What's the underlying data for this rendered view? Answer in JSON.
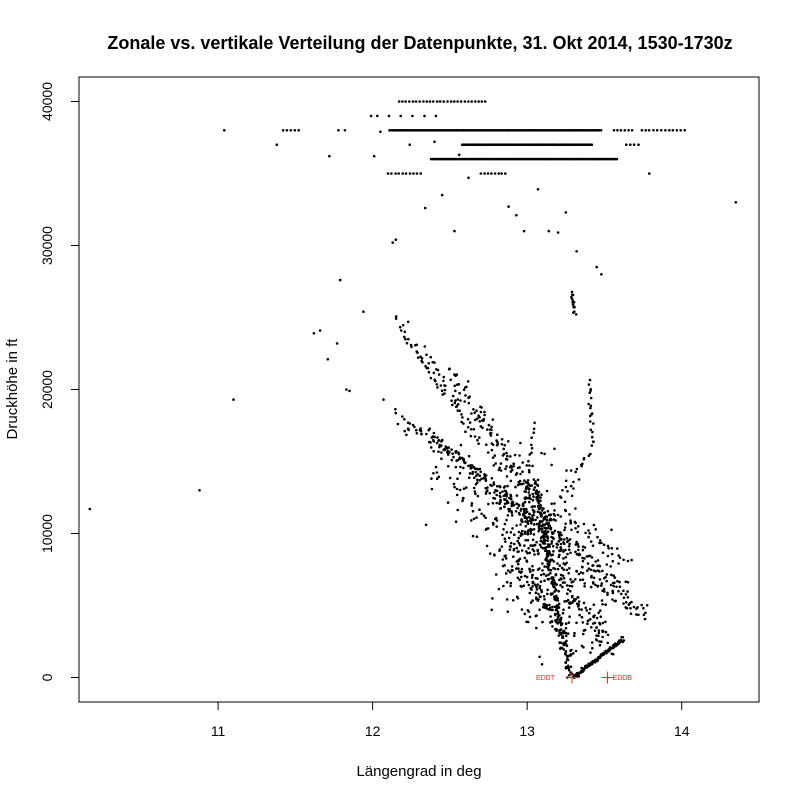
{
  "chart_data": {
    "type": "scatter",
    "title": "Zonale vs. vertikale Verteilung der Datenpunkte, 31. Okt 2014, 1530-1730z",
    "xlabel": "Längengrad in deg",
    "ylabel": "Druckhöhe in ft",
    "xlim": [
      10.1,
      14.5
    ],
    "ylim": [
      -1700,
      41700
    ],
    "x_ticks": [
      11,
      12,
      13,
      14
    ],
    "y_ticks": [
      0,
      10000,
      20000,
      30000,
      40000
    ],
    "grid": false,
    "legend": "none",
    "marker_color": "#000000",
    "annotation_color": "#ff2020",
    "airports": [
      {
        "label": "EDDT",
        "x": 13.29,
        "y": 0
      },
      {
        "label": "EDDB",
        "x": 13.52,
        "y": 0
      }
    ],
    "isolated_points": [
      [
        10.17,
        11700
      ],
      [
        10.88,
        13000
      ],
      [
        11.1,
        19300
      ],
      [
        11.04,
        38000
      ],
      [
        11.38,
        37000
      ],
      [
        11.62,
        23900
      ],
      [
        11.66,
        24100
      ],
      [
        11.71,
        22100
      ],
      [
        11.72,
        36200
      ],
      [
        11.77,
        23200
      ],
      [
        11.79,
        27600
      ],
      [
        11.83,
        20000
      ],
      [
        11.85,
        19900
      ],
      [
        11.94,
        25400
      ],
      [
        11.99,
        39000
      ],
      [
        12.01,
        36200
      ],
      [
        12.07,
        19300
      ],
      [
        12.13,
        30200
      ],
      [
        12.15,
        30400
      ],
      [
        12.23,
        24700
      ],
      [
        12.34,
        32600
      ],
      [
        12.45,
        33500
      ],
      [
        12.53,
        31000
      ],
      [
        12.56,
        36300
      ],
      [
        12.62,
        34700
      ],
      [
        12.88,
        32700
      ],
      [
        12.93,
        32100
      ],
      [
        13.07,
        33900
      ],
      [
        13.25,
        32300
      ],
      [
        13.32,
        29600
      ],
      [
        13.45,
        28500
      ],
      [
        13.48,
        28000
      ],
      [
        13.79,
        35000
      ],
      [
        14.35,
        33000
      ],
      [
        12.98,
        31000
      ],
      [
        13.14,
        31000
      ],
      [
        13.2,
        30900
      ],
      [
        12.05,
        37900
      ],
      [
        12.24,
        37000
      ],
      [
        12.4,
        37200
      ]
    ],
    "levels": [
      {
        "y": 40000,
        "x_range": [
          12.17,
          12.73
        ],
        "count": 26
      },
      {
        "y": 39000,
        "x_range": [
          12.03,
          12.41
        ],
        "count": 6
      },
      {
        "y": 38000,
        "x_range": [
          11.42,
          11.52
        ],
        "count": 5
      },
      {
        "y": 38000,
        "x_range": [
          11.78,
          11.82
        ],
        "count": 2
      },
      {
        "y": 38000,
        "x_range": [
          12.11,
          13.48
        ],
        "count": 150
      },
      {
        "y": 38000,
        "x_range": [
          13.56,
          13.68
        ],
        "count": 6
      },
      {
        "y": 38000,
        "x_range": [
          13.74,
          14.02
        ],
        "count": 12
      },
      {
        "y": 37000,
        "x_range": [
          12.58,
          13.42
        ],
        "count": 90
      },
      {
        "y": 37000,
        "x_range": [
          13.64,
          13.72
        ],
        "count": 4
      },
      {
        "y": 36000,
        "x_range": [
          12.38,
          13.58
        ],
        "count": 120
      },
      {
        "y": 35000,
        "x_range": [
          12.1,
          12.31
        ],
        "count": 10
      },
      {
        "y": 35000,
        "x_range": [
          12.7,
          12.86
        ],
        "count": 8
      }
    ],
    "tracks": [
      {
        "from": [
          13.05,
          13700
        ],
        "to": [
          13.27,
          0
        ],
        "count": 180,
        "jitter": [
          0.012,
          150
        ]
      },
      {
        "from": [
          13.62,
          2700
        ],
        "to": [
          13.3,
          0
        ],
        "count": 130,
        "jitter": [
          0.005,
          60
        ]
      },
      {
        "from": [
          12.42,
          16600
        ],
        "to": [
          13.78,
          4300
        ],
        "count": 120,
        "jitter": [
          0.02,
          250
        ]
      },
      {
        "from": [
          12.15,
          18500
        ],
        "to": [
          13.65,
          6500
        ],
        "count": 100,
        "jitter": [
          0.02,
          250
        ]
      },
      {
        "from": [
          12.25,
          17500
        ],
        "to": [
          13.2,
          9000
        ],
        "count": 90,
        "jitter": [
          0.03,
          300
        ]
      },
      {
        "from": [
          12.51,
          21400
        ],
        "to": [
          13.15,
          10800
        ],
        "count": 80,
        "jitter": [
          0.02,
          250
        ]
      },
      {
        "from": [
          12.15,
          24900
        ],
        "to": [
          12.45,
          19700
        ],
        "count": 30,
        "jitter": [
          0.01,
          150
        ]
      },
      {
        "from": [
          12.3,
          23000
        ],
        "to": [
          12.7,
          16300
        ],
        "count": 40,
        "jitter": [
          0.02,
          200
        ]
      },
      {
        "from": [
          12.55,
          20000
        ],
        "to": [
          13.3,
          7500
        ],
        "count": 70,
        "jitter": [
          0.03,
          400
        ]
      },
      {
        "from": [
          12.4,
          14400
        ],
        "to": [
          13.5,
          3200
        ],
        "count": 70,
        "jitter": [
          0.04,
          350
        ]
      },
      {
        "from": [
          12.82,
          13400
        ],
        "to": [
          13.55,
          1500
        ],
        "count": 60,
        "jitter": [
          0.03,
          250
        ]
      },
      {
        "from": [
          12.85,
          8100
        ],
        "to": [
          13.25,
          3400
        ],
        "count": 40,
        "jitter": [
          0.02,
          300
        ]
      },
      {
        "from": [
          13.05,
          6500
        ],
        "to": [
          13.3,
          1500
        ],
        "count": 35,
        "jitter": [
          0.015,
          200
        ]
      },
      {
        "from": [
          13.29,
          26800
        ],
        "to": [
          13.31,
          25300
        ],
        "count": 14,
        "jitter": [
          0.006,
          100
        ]
      },
      {
        "from": [
          13.4,
          20500
        ],
        "to": [
          13.43,
          16200
        ],
        "count": 20,
        "jitter": [
          0.006,
          120
        ]
      },
      {
        "from": [
          13.4,
          15700
        ],
        "to": [
          13.05,
          8500
        ],
        "count": 40,
        "jitter": [
          0.02,
          200
        ]
      },
      {
        "from": [
          13.25,
          11000
        ],
        "to": [
          13.65,
          8000
        ],
        "count": 30,
        "jitter": [
          0.02,
          200
        ]
      },
      {
        "from": [
          13.15,
          8500
        ],
        "to": [
          13.72,
          4500
        ],
        "count": 40,
        "jitter": [
          0.02,
          250
        ]
      },
      {
        "from": [
          13.05,
          17600
        ],
        "to": [
          12.95,
          9500
        ],
        "count": 25,
        "jitter": [
          0.01,
          300
        ]
      },
      {
        "from": [
          13.49,
          8000
        ],
        "to": [
          13.46,
          2500
        ],
        "count": 20,
        "jitter": [
          0.02,
          200
        ]
      }
    ],
    "clouds": [
      {
        "center": [
          13.0,
          9500
        ],
        "spread": [
          0.14,
          2400
        ],
        "count": 160
      },
      {
        "center": [
          13.15,
          7000
        ],
        "spread": [
          0.18,
          2200
        ],
        "count": 90
      },
      {
        "center": [
          12.75,
          13500
        ],
        "spread": [
          0.18,
          1900
        ],
        "count": 60
      },
      {
        "center": [
          13.35,
          4500
        ],
        "spread": [
          0.1,
          1700
        ],
        "count": 40
      }
    ]
  }
}
